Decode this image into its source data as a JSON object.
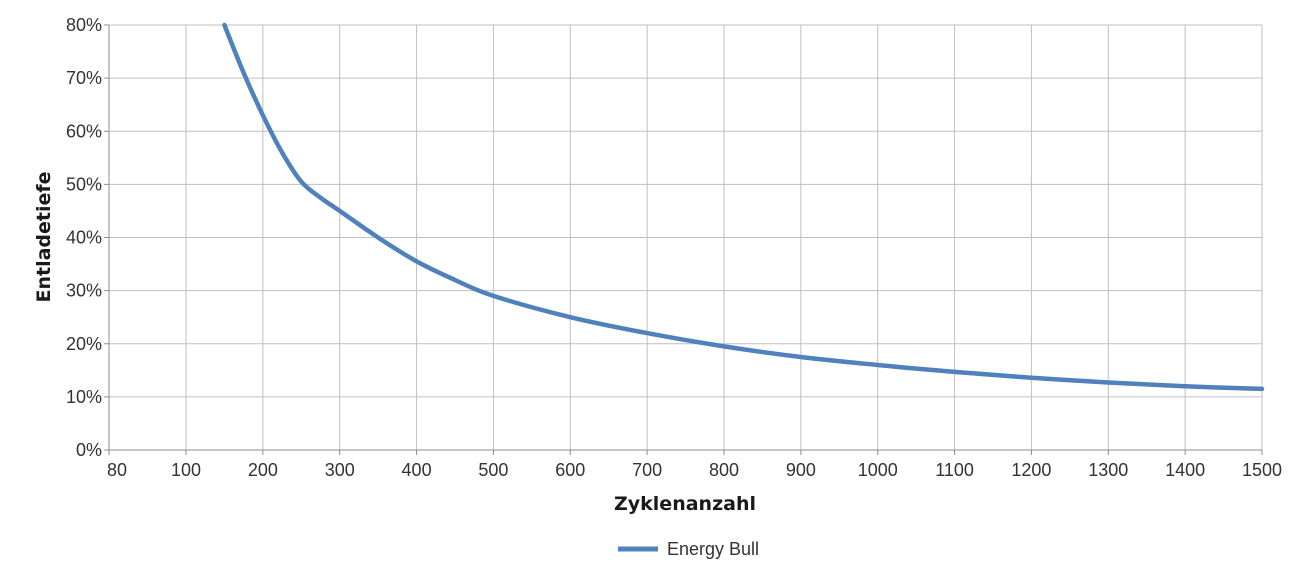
{
  "chart_data": {
    "type": "line",
    "xlabel": "Zyklenanzahl",
    "ylabel": "Entladetiefe",
    "x_ticks": [
      "80",
      "100",
      "200",
      "300",
      "400",
      "500",
      "600",
      "700",
      "800",
      "900",
      "1000",
      "1100",
      "1200",
      "1300",
      "1400",
      "1500"
    ],
    "y_ticks": [
      "0%",
      "10%",
      "20%",
      "30%",
      "40%",
      "50%",
      "60%",
      "70%",
      "80%"
    ],
    "xlim": [
      80,
      1500
    ],
    "ylim": [
      0,
      80
    ],
    "grid": true,
    "legend_position": "bottom",
    "series": [
      {
        "name": "Energy Bull",
        "color": "#4f81bd",
        "x": [
          150,
          175,
          200,
          225,
          250,
          275,
          300,
          350,
          400,
          450,
          500,
          600,
          700,
          800,
          900,
          1000,
          1100,
          1200,
          1300,
          1400,
          1500
        ],
        "y": [
          80,
          71,
          63,
          56,
          50.5,
          47.5,
          45,
          40,
          35.5,
          32,
          29,
          25,
          22,
          19.5,
          17.5,
          16,
          14.7,
          13.6,
          12.7,
          12,
          11.5
        ]
      }
    ]
  }
}
